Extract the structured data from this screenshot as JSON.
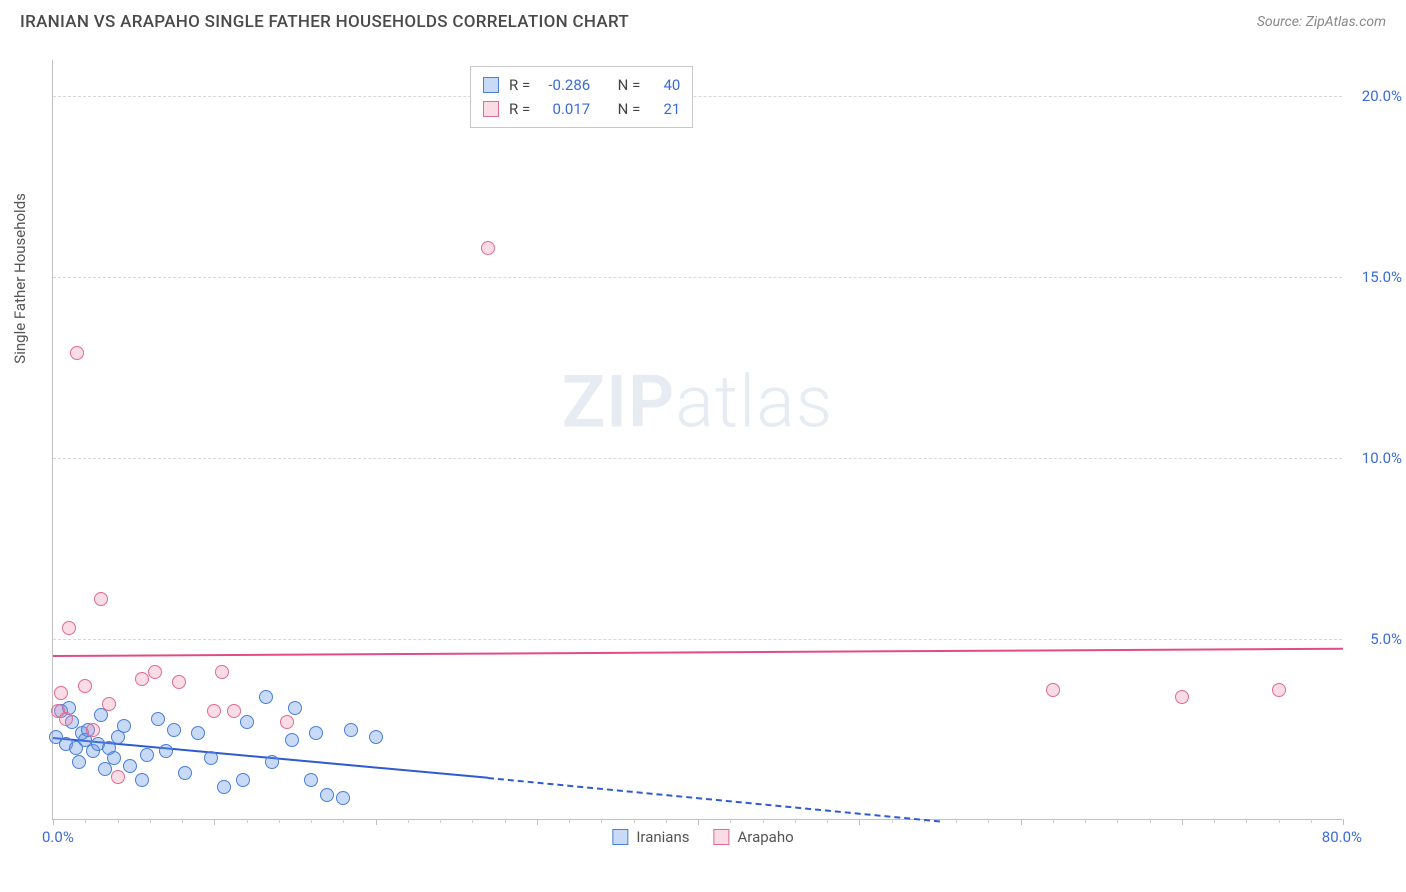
{
  "header": {
    "title": "IRANIAN VS ARAPAHO SINGLE FATHER HOUSEHOLDS CORRELATION CHART",
    "source_prefix": "Source: ",
    "source_name": "ZipAtlas.com"
  },
  "chart": {
    "type": "scatter",
    "y_axis_title": "Single Father Households",
    "xlim": [
      0,
      80
    ],
    "ylim": [
      0,
      21
    ],
    "x_start_label": "0.0%",
    "x_end_label": "80.0%",
    "y_ticks": [
      {
        "v": 5,
        "label": "5.0%"
      },
      {
        "v": 10,
        "label": "10.0%"
      },
      {
        "v": 15,
        "label": "15.0%"
      },
      {
        "v": 20,
        "label": "20.0%"
      }
    ],
    "x_major_ticks": [
      0,
      10,
      20,
      30,
      40,
      50,
      60,
      70,
      80
    ],
    "x_minor_ticks": [
      2,
      4,
      6,
      8,
      12,
      14,
      16,
      18,
      22,
      24,
      26,
      28,
      32,
      34,
      36,
      38,
      42,
      44,
      46,
      48,
      52,
      54,
      56,
      58,
      62,
      64,
      66,
      68,
      72,
      74,
      76,
      78
    ],
    "grid_color": "#d8d8d8",
    "background_color": "#ffffff",
    "watermark": {
      "bold": "ZIP",
      "rest": "atlas"
    },
    "series": [
      {
        "name": "Iranians",
        "marker_size": 14,
        "fill": "rgba(100,150,230,0.35)",
        "stroke": "#4a7fd8",
        "trend": {
          "x1": 0,
          "y1": 2.3,
          "x2": 27,
          "y2": 1.2,
          "extend_x": 55,
          "extend_y": 0,
          "color": "#2f5bd0",
          "width": 2
        },
        "points": [
          {
            "x": 0.2,
            "y": 2.3
          },
          {
            "x": 0.5,
            "y": 3.0
          },
          {
            "x": 0.8,
            "y": 2.1
          },
          {
            "x": 1.0,
            "y": 3.1
          },
          {
            "x": 1.2,
            "y": 2.7
          },
          {
            "x": 1.4,
            "y": 2.0
          },
          {
            "x": 1.6,
            "y": 1.6
          },
          {
            "x": 1.8,
            "y": 2.4
          },
          {
            "x": 2.0,
            "y": 2.2
          },
          {
            "x": 2.2,
            "y": 2.5
          },
          {
            "x": 2.5,
            "y": 1.9
          },
          {
            "x": 2.8,
            "y": 2.1
          },
          {
            "x": 3.0,
            "y": 2.9
          },
          {
            "x": 3.2,
            "y": 1.4
          },
          {
            "x": 3.5,
            "y": 2.0
          },
          {
            "x": 3.8,
            "y": 1.7
          },
          {
            "x": 4.0,
            "y": 2.3
          },
          {
            "x": 4.4,
            "y": 2.6
          },
          {
            "x": 4.8,
            "y": 1.5
          },
          {
            "x": 5.5,
            "y": 1.1
          },
          {
            "x": 5.8,
            "y": 1.8
          },
          {
            "x": 6.5,
            "y": 2.8
          },
          {
            "x": 7.0,
            "y": 1.9
          },
          {
            "x": 7.5,
            "y": 2.5
          },
          {
            "x": 8.2,
            "y": 1.3
          },
          {
            "x": 9.0,
            "y": 2.4
          },
          {
            "x": 9.8,
            "y": 1.7
          },
          {
            "x": 10.6,
            "y": 0.9
          },
          {
            "x": 11.8,
            "y": 1.1
          },
          {
            "x": 12.0,
            "y": 2.7
          },
          {
            "x": 13.2,
            "y": 3.4
          },
          {
            "x": 13.6,
            "y": 1.6
          },
          {
            "x": 14.8,
            "y": 2.2
          },
          {
            "x": 15.0,
            "y": 3.1
          },
          {
            "x": 16.0,
            "y": 1.1
          },
          {
            "x": 16.3,
            "y": 2.4
          },
          {
            "x": 17.0,
            "y": 0.7
          },
          {
            "x": 18.0,
            "y": 0.6
          },
          {
            "x": 18.5,
            "y": 2.5
          },
          {
            "x": 20.0,
            "y": 2.3
          }
        ]
      },
      {
        "name": "Arapaho",
        "marker_size": 14,
        "fill": "rgba(240,140,170,0.30)",
        "stroke": "#e06b94",
        "trend": {
          "x1": 0,
          "y1": 4.55,
          "x2": 80,
          "y2": 4.75,
          "color": "#e24c86",
          "width": 2
        },
        "points": [
          {
            "x": 0.3,
            "y": 3.0
          },
          {
            "x": 0.5,
            "y": 3.5
          },
          {
            "x": 0.8,
            "y": 2.8
          },
          {
            "x": 1.0,
            "y": 5.3
          },
          {
            "x": 1.5,
            "y": 12.9
          },
          {
            "x": 2.0,
            "y": 3.7
          },
          {
            "x": 2.5,
            "y": 2.5
          },
          {
            "x": 3.0,
            "y": 6.1
          },
          {
            "x": 3.5,
            "y": 3.2
          },
          {
            "x": 4.0,
            "y": 1.2
          },
          {
            "x": 5.5,
            "y": 3.9
          },
          {
            "x": 6.3,
            "y": 4.1
          },
          {
            "x": 7.8,
            "y": 3.8
          },
          {
            "x": 10.0,
            "y": 3.0
          },
          {
            "x": 10.5,
            "y": 4.1
          },
          {
            "x": 11.2,
            "y": 3.0
          },
          {
            "x": 14.5,
            "y": 2.7
          },
          {
            "x": 27.0,
            "y": 15.8
          },
          {
            "x": 62.0,
            "y": 3.6
          },
          {
            "x": 70.0,
            "y": 3.4
          },
          {
            "x": 76.0,
            "y": 3.6
          }
        ]
      }
    ]
  },
  "stats_legend": {
    "rows": [
      {
        "swatch_fill": "rgba(100,150,230,0.35)",
        "swatch_stroke": "#4a7fd8",
        "r_label": "R =",
        "r_val": "-0.286",
        "n_label": "N =",
        "n_val": "40"
      },
      {
        "swatch_fill": "rgba(240,140,170,0.30)",
        "swatch_stroke": "#e06b94",
        "r_label": "R =",
        "r_val": "0.017",
        "n_label": "N =",
        "n_val": "21"
      }
    ]
  },
  "bottom_legend": {
    "items": [
      {
        "swatch_fill": "rgba(100,150,230,0.35)",
        "swatch_stroke": "#4a7fd8",
        "label": "Iranians"
      },
      {
        "swatch_fill": "rgba(240,140,170,0.30)",
        "swatch_stroke": "#e06b94",
        "label": "Arapaho"
      }
    ]
  }
}
